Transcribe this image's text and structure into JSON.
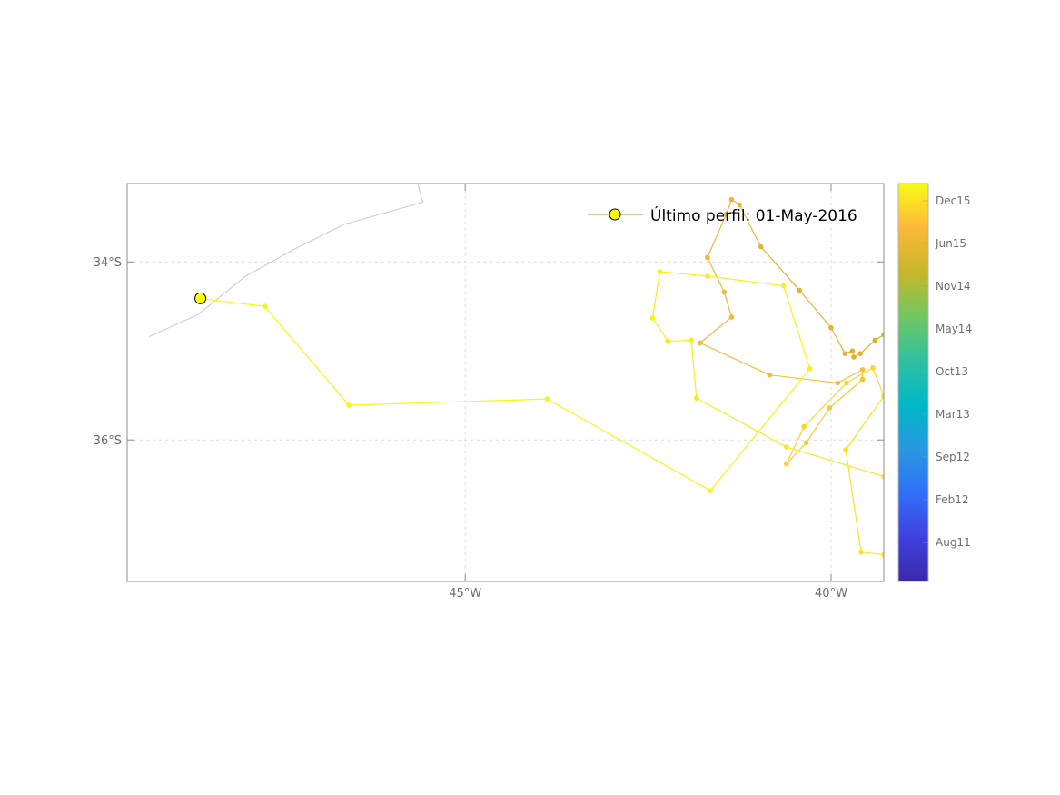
{
  "chart_data": {
    "type": "map-trajectory",
    "xlim": [
      -49.62,
      -39.28
    ],
    "ylim": [
      -37.59,
      -33.12
    ],
    "grid": true,
    "x_ticks": [
      {
        "value": -45,
        "label": "45°W"
      },
      {
        "value": -40,
        "label": "40°W"
      }
    ],
    "y_ticks": [
      {
        "value": -34,
        "label": "34°S"
      },
      {
        "value": -36,
        "label": "36°S"
      }
    ],
    "coastline": {
      "color": "#c8c8c8",
      "lon": [
        -49.32,
        -48.65,
        -48.0,
        -47.32,
        -46.66,
        -45.58,
        -45.65
      ],
      "lat": [
        -34.84,
        -34.59,
        -34.16,
        -33.85,
        -33.58,
        -33.33,
        -33.12
      ]
    },
    "track_segments": [
      {
        "lon": [
          -39.28,
          -39.4,
          -39.6,
          -39.69,
          -39.71,
          -39.81,
          -40.0,
          -40.43,
          -40.96,
          -41.25,
          -41.36,
          -41.43,
          -41.69,
          -41.46,
          -41.36,
          -41.79,
          -40.84,
          -39.91,
          -39.57,
          -39.57,
          -40.02,
          -40.34,
          -40.61,
          -40.37,
          -39.79,
          -39.43,
          -39.28,
          -39.8,
          -39.59,
          -39.28
        ],
        "lat": [
          -34.82,
          -34.88,
          -35.03,
          -35.07,
          -35.0,
          -35.03,
          -34.74,
          -34.32,
          -33.83,
          -33.36,
          -33.3,
          -33.46,
          -33.95,
          -34.34,
          -34.62,
          -34.91,
          -35.27,
          -35.36,
          -35.21,
          -35.32,
          -35.64,
          -36.03,
          -36.27,
          -35.85,
          -35.36,
          -35.19,
          -35.51,
          -36.11,
          -37.26,
          -37.29
        ]
      },
      {
        "lon": [
          -39.28,
          -40.61,
          -41.84,
          -41.91,
          -42.23,
          -42.44,
          -42.34,
          -41.69,
          -40.65,
          -40.29,
          -41.65,
          -43.88,
          -46.59,
          -47.74,
          -48.62
        ],
        "lat": [
          -36.41,
          -36.08,
          -35.53,
          -34.88,
          -34.89,
          -34.63,
          -34.11,
          -34.16,
          -34.27,
          -35.2,
          -36.57,
          -35.54,
          -35.61,
          -34.5,
          -34.41
        ]
      }
    ],
    "track_colormap": [
      "#d9b12a",
      "#f6b63e",
      "#fbe622",
      "#f9f60e"
    ],
    "last_profile": {
      "lon": -48.62,
      "lat": -34.41,
      "color": "#ffff00"
    },
    "legend": {
      "label": "Último perfil: 01-May-2016",
      "line_color": "#77ac30",
      "marker_color": "#ffff00",
      "placement": "top-right"
    },
    "colorbar": {
      "colormap": [
        "#3a2aa8",
        "#4040e0",
        "#3070f8",
        "#2898e0",
        "#00b8c8",
        "#30c0a0",
        "#70c860",
        "#c8b62a",
        "#fcb83a",
        "#f9fb14"
      ],
      "ticks": [
        "Dec15",
        "Jun15",
        "Nov14",
        "May14",
        "Oct13",
        "Mar13",
        "Sep12",
        "Feb12",
        "Aug11"
      ]
    }
  }
}
